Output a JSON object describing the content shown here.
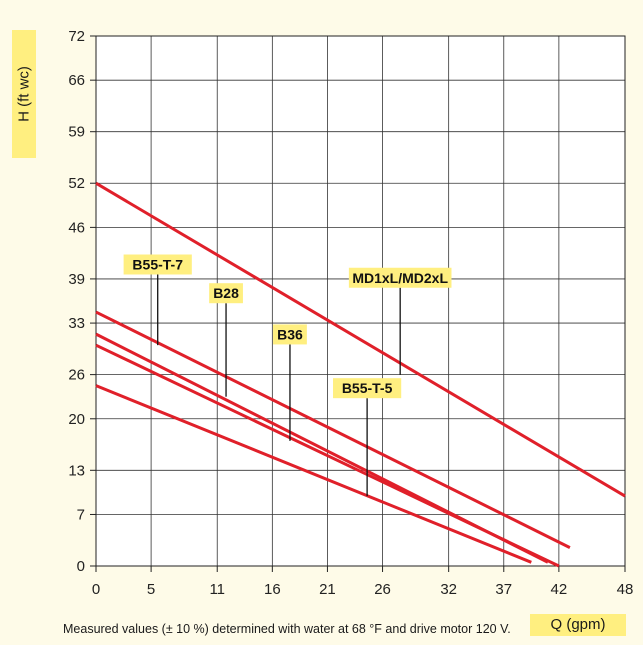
{
  "chart_data": {
    "type": "line",
    "ylabel": "H (ft wc)",
    "xlabel": "Q (gpm)",
    "footnote": "Measured values (± 10 %) determined with water at 68 °F and drive motor 120 V.",
    "xlim": [
      0,
      48
    ],
    "ylim": [
      0,
      72
    ],
    "x_ticks": [
      "0",
      "5",
      "11",
      "16",
      "21",
      "26",
      "32",
      "37",
      "42",
      "48"
    ],
    "y_ticks": [
      "0",
      "7",
      "13",
      "20",
      "26",
      "33",
      "39",
      "46",
      "52",
      "59",
      "66",
      "72"
    ],
    "grid": true,
    "line_color": "#e0202a",
    "label_bg": "#ffef80",
    "series": [
      {
        "name": "MD1xL/MD2xL",
        "x": [
          0,
          48
        ],
        "y": [
          52,
          9.5
        ]
      },
      {
        "name": "B55-T-7",
        "x": [
          0,
          43
        ],
        "y": [
          34.5,
          2.5
        ]
      },
      {
        "name": "B28",
        "x": [
          0,
          41
        ],
        "y": [
          31.5,
          0.5
        ]
      },
      {
        "name": "B36",
        "x": [
          0,
          42
        ],
        "y": [
          30,
          0
        ]
      },
      {
        "name": "B55-T-5",
        "x": [
          0,
          39.5
        ],
        "y": [
          24.5,
          0.5
        ]
      }
    ],
    "annotations": [
      {
        "text": "B55-T-7",
        "label_x": 5.6,
        "label_y": 39.6,
        "point_x": 5.6,
        "point_y": 30
      },
      {
        "text": "B28",
        "label_x": 11.8,
        "label_y": 35.7,
        "point_x": 11.8,
        "point_y": 23
      },
      {
        "text": "B36",
        "label_x": 17.6,
        "label_y": 30.1,
        "point_x": 17.6,
        "point_y": 17
      },
      {
        "text": "MD1xL/MD2xL",
        "label_x": 27.6,
        "label_y": 37.8,
        "point_x": 27.6,
        "point_y": 26
      },
      {
        "text": "B55-T-5",
        "label_x": 24.6,
        "label_y": 22.8,
        "point_x": 24.6,
        "point_y": 9.5
      }
    ]
  }
}
